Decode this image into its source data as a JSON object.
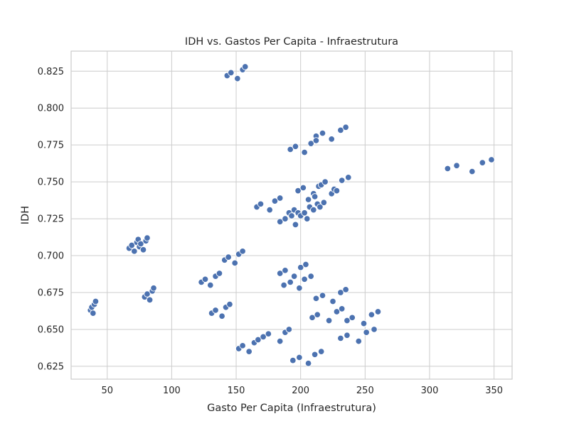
{
  "chart_data": {
    "type": "scatter",
    "title": "IDH vs. Gastos Per Capita - Infraestrutura",
    "xlabel": "Gasto Per Capita (Infraestrutura)",
    "ylabel": "IDH",
    "xlim": [
      22,
      364
    ],
    "ylim": [
      0.6163,
      0.8386
    ],
    "xticks": [
      50,
      100,
      150,
      200,
      250,
      300,
      350
    ],
    "yticks": [
      0.625,
      0.65,
      0.675,
      0.7,
      0.725,
      0.75,
      0.775,
      0.8,
      0.825
    ],
    "xtick_labels": [
      "50",
      "100",
      "150",
      "200",
      "250",
      "300",
      "350"
    ],
    "ytick_labels": [
      "0.625",
      "0.650",
      "0.675",
      "0.700",
      "0.725",
      "0.750",
      "0.775",
      "0.800",
      "0.825"
    ],
    "grid": true,
    "color": "#4c72b0",
    "points": [
      [
        143,
        0.822
      ],
      [
        146,
        0.824
      ],
      [
        151,
        0.82
      ],
      [
        155,
        0.826
      ],
      [
        157,
        0.828
      ],
      [
        192,
        0.772
      ],
      [
        196,
        0.774
      ],
      [
        203,
        0.77
      ],
      [
        208,
        0.776
      ],
      [
        212,
        0.781
      ],
      [
        212,
        0.778
      ],
      [
        217,
        0.783
      ],
      [
        224,
        0.779
      ],
      [
        231,
        0.785
      ],
      [
        235,
        0.787
      ],
      [
        314,
        0.759
      ],
      [
        321,
        0.761
      ],
      [
        333,
        0.757
      ],
      [
        341,
        0.763
      ],
      [
        348,
        0.765
      ],
      [
        166,
        0.733
      ],
      [
        169,
        0.735
      ],
      [
        176,
        0.731
      ],
      [
        180,
        0.737
      ],
      [
        184,
        0.739
      ],
      [
        184,
        0.723
      ],
      [
        188,
        0.725
      ],
      [
        191,
        0.729
      ],
      [
        193,
        0.727
      ],
      [
        195,
        0.731
      ],
      [
        196,
        0.721
      ],
      [
        198,
        0.729
      ],
      [
        198,
        0.744
      ],
      [
        200,
        0.727
      ],
      [
        202,
        0.746
      ],
      [
        203,
        0.729
      ],
      [
        205,
        0.725
      ],
      [
        206,
        0.738
      ],
      [
        207,
        0.733
      ],
      [
        210,
        0.731
      ],
      [
        210,
        0.742
      ],
      [
        211,
        0.74
      ],
      [
        213,
        0.735
      ],
      [
        214,
        0.747
      ],
      [
        215,
        0.733
      ],
      [
        216,
        0.748
      ],
      [
        218,
        0.736
      ],
      [
        219,
        0.75
      ],
      [
        224,
        0.742
      ],
      [
        226,
        0.745
      ],
      [
        228,
        0.744
      ],
      [
        232,
        0.751
      ],
      [
        237,
        0.753
      ],
      [
        67,
        0.705
      ],
      [
        69,
        0.707
      ],
      [
        71,
        0.703
      ],
      [
        73,
        0.709
      ],
      [
        74,
        0.711
      ],
      [
        75,
        0.706
      ],
      [
        76,
        0.708
      ],
      [
        78,
        0.704
      ],
      [
        80,
        0.71
      ],
      [
        81,
        0.712
      ],
      [
        141,
        0.697
      ],
      [
        144,
        0.699
      ],
      [
        149,
        0.695
      ],
      [
        152,
        0.701
      ],
      [
        155,
        0.703
      ],
      [
        123,
        0.682
      ],
      [
        126,
        0.684
      ],
      [
        130,
        0.68
      ],
      [
        134,
        0.686
      ],
      [
        137,
        0.688
      ],
      [
        184,
        0.688
      ],
      [
        187,
        0.68
      ],
      [
        188,
        0.69
      ],
      [
        192,
        0.682
      ],
      [
        195,
        0.686
      ],
      [
        199,
        0.678
      ],
      [
        200,
        0.692
      ],
      [
        203,
        0.684
      ],
      [
        204,
        0.694
      ],
      [
        208,
        0.686
      ],
      [
        37,
        0.663
      ],
      [
        38,
        0.665
      ],
      [
        39,
        0.661
      ],
      [
        40,
        0.667
      ],
      [
        41,
        0.669
      ],
      [
        79,
        0.672
      ],
      [
        81,
        0.674
      ],
      [
        83,
        0.67
      ],
      [
        85,
        0.676
      ],
      [
        86,
        0.678
      ],
      [
        131,
        0.661
      ],
      [
        134,
        0.663
      ],
      [
        139,
        0.659
      ],
      [
        142,
        0.665
      ],
      [
        145,
        0.667
      ],
      [
        209,
        0.658
      ],
      [
        212,
        0.671
      ],
      [
        213,
        0.66
      ],
      [
        217,
        0.673
      ],
      [
        222,
        0.656
      ],
      [
        225,
        0.669
      ],
      [
        228,
        0.662
      ],
      [
        231,
        0.675
      ],
      [
        232,
        0.664
      ],
      [
        235,
        0.677
      ],
      [
        236,
        0.656
      ],
      [
        240,
        0.658
      ],
      [
        249,
        0.654
      ],
      [
        251,
        0.648
      ],
      [
        255,
        0.66
      ],
      [
        257,
        0.65
      ],
      [
        260,
        0.662
      ],
      [
        152,
        0.637
      ],
      [
        155,
        0.639
      ],
      [
        160,
        0.635
      ],
      [
        164,
        0.641
      ],
      [
        167,
        0.643
      ],
      [
        171,
        0.645
      ],
      [
        175,
        0.647
      ],
      [
        184,
        0.642
      ],
      [
        188,
        0.648
      ],
      [
        191,
        0.65
      ],
      [
        194,
        0.629
      ],
      [
        199,
        0.631
      ],
      [
        206,
        0.627
      ],
      [
        211,
        0.633
      ],
      [
        216,
        0.635
      ],
      [
        231,
        0.644
      ],
      [
        236,
        0.646
      ],
      [
        245,
        0.642
      ]
    ]
  }
}
